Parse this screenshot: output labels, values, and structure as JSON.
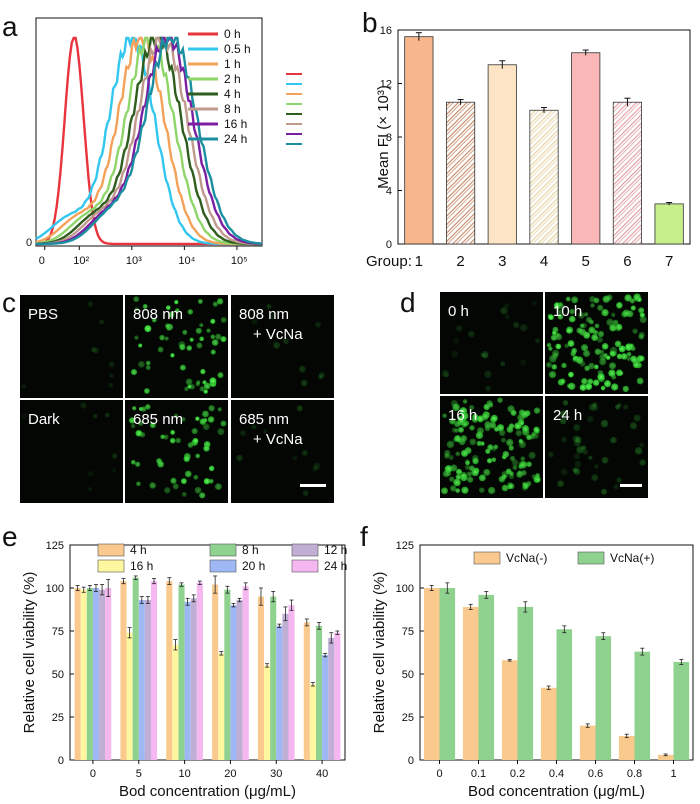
{
  "panels": {
    "a": "a",
    "b": "b",
    "c": "c",
    "d": "d",
    "e": "e",
    "f": "f"
  },
  "chart_data": [
    {
      "panel": "a",
      "type": "line",
      "x_scale": "log",
      "x_tick_labels": [
        "0",
        "10²",
        "10³",
        "10⁴",
        "10⁵"
      ],
      "y_tick_labels": [
        "0"
      ],
      "series": [
        {
          "name": "0 h",
          "color": "#e8343c",
          "peak": 80
        },
        {
          "name": "0.5 h",
          "color": "#33c7f0",
          "peak": 1000
        },
        {
          "name": "1 h",
          "color": "#f4a25a",
          "peak": 1500
        },
        {
          "name": "2 h",
          "color": "#8fd66a",
          "peak": 2200
        },
        {
          "name": "4 h",
          "color": "#2f5d1e",
          "peak": 3000
        },
        {
          "name": "8 h",
          "color": "#c09a8c",
          "peak": 3800
        },
        {
          "name": "16 h",
          "color": "#7b1fa2",
          "peak": 4800
        },
        {
          "name": "24 h",
          "color": "#1b8fa0",
          "peak": 5600
        }
      ],
      "legend_extra_colors": [
        "#e8343c",
        "#33c7f0",
        "#f4a25a",
        "#8fd66a",
        "#2f5d1e",
        "#c09a8c",
        "#7b1fa2",
        "#1b8fa0"
      ]
    },
    {
      "panel": "b",
      "type": "bar",
      "categories_label": "Group:",
      "categories": [
        "1",
        "2",
        "3",
        "4",
        "5",
        "6",
        "7"
      ],
      "values": [
        15.5,
        10.6,
        13.4,
        10.0,
        14.3,
        10.6,
        3.0
      ],
      "errors": [
        0.3,
        0.2,
        0.3,
        0.2,
        0.2,
        0.3,
        0.1
      ],
      "fills": [
        "#f7b68c",
        "#c98d6e",
        "#fde4c4",
        "#e8d2a2",
        "#f9b7b7",
        "#e2a2a6",
        "#c7ef8a"
      ],
      "hatched": [
        false,
        true,
        false,
        true,
        false,
        true,
        false
      ],
      "ylabel": "Mean FI (× 10³)",
      "ylim": [
        0,
        16
      ],
      "y_ticks": [
        0,
        4,
        8,
        12,
        16
      ]
    },
    {
      "panel": "e",
      "type": "bar",
      "categories": [
        "0",
        "5",
        "10",
        "20",
        "30",
        "40"
      ],
      "series": [
        {
          "name": "4 h",
          "color": "#f9c98e",
          "values": [
            100,
            104,
            104,
            102,
            95,
            80
          ],
          "errors": [
            1.5,
            1.5,
            2,
            5,
            5,
            2
          ]
        },
        {
          "name": "16 h",
          "color": "#fff7a0",
          "values": [
            99,
            74,
            67,
            62,
            55,
            44
          ],
          "errors": [
            1.5,
            3,
            3,
            1,
            1,
            1
          ]
        },
        {
          "name": "8 h",
          "color": "#8fd18f",
          "values": [
            100,
            106,
            102,
            99,
            95,
            78
          ],
          "errors": [
            1.5,
            1,
            1,
            2,
            3,
            2
          ]
        },
        {
          "name": "20 h",
          "color": "#9eb8f5",
          "values": [
            100,
            93,
            92,
            90,
            78,
            61
          ],
          "errors": [
            2,
            2,
            2,
            1,
            1,
            1
          ]
        },
        {
          "name": "12 h",
          "color": "#c0aed4",
          "values": [
            99,
            93,
            94,
            93,
            85,
            71
          ],
          "errors": [
            3,
            2,
            2,
            1,
            4,
            3
          ]
        },
        {
          "name": "24 h",
          "color": "#f5b7f0",
          "values": [
            100,
            104,
            103,
            101,
            90,
            74
          ],
          "errors": [
            5,
            1.5,
            1,
            2,
            3,
            1
          ]
        }
      ],
      "xlabel": "Bod concentration (μg/mL)",
      "ylabel": "Relative cell viability (%)",
      "ylim": [
        0,
        125
      ],
      "y_ticks": [
        0,
        25,
        50,
        75,
        100,
        125
      ]
    },
    {
      "panel": "f",
      "type": "bar",
      "categories": [
        "0",
        "0.1",
        "0.2",
        "0.4",
        "0.6",
        "0.8",
        "1"
      ],
      "series": [
        {
          "name": "VcNa(-)",
          "color": "#f9c98e",
          "values": [
            100,
            89,
            58,
            42,
            20,
            14,
            3
          ],
          "errors": [
            1.5,
            1.5,
            0.5,
            1,
            1,
            1,
            0.5
          ]
        },
        {
          "name": "VcNa(+)",
          "color": "#8fd18f",
          "values": [
            100,
            96,
            89,
            76,
            72,
            63,
            57
          ],
          "errors": [
            3,
            2,
            3,
            2,
            2,
            2,
            1.5
          ]
        }
      ],
      "xlabel": "Bod concentration (μg/mL)",
      "ylabel": "Relative cell viability (%)",
      "ylim": [
        0,
        125
      ],
      "y_ticks": [
        0,
        25,
        50,
        75,
        100,
        125
      ]
    }
  ],
  "micrographs_c": [
    {
      "label": "PBS",
      "label2": "",
      "density": 8,
      "brightness": 0.18
    },
    {
      "label": "808 nm",
      "label2": "",
      "density": 60,
      "brightness": 1
    },
    {
      "label": "808 nm",
      "label2": "+ VcNa",
      "density": 10,
      "brightness": 0.22
    },
    {
      "label": "Dark",
      "label2": "",
      "density": 8,
      "brightness": 0.18
    },
    {
      "label": "685 nm",
      "label2": "",
      "density": 55,
      "brightness": 1
    },
    {
      "label": "685 nm",
      "label2": "+ VcNa",
      "density": 10,
      "brightness": 0.22
    }
  ],
  "micrographs_d": [
    {
      "label": "0 h",
      "density": 20,
      "brightness": 0.2
    },
    {
      "label": "10 h",
      "density": 140,
      "brightness": 1
    },
    {
      "label": "16 h",
      "density": 150,
      "brightness": 0.9
    },
    {
      "label": "24 h",
      "density": 40,
      "brightness": 0.3
    }
  ],
  "colors": {
    "micro_bg": "#030603",
    "cell_green": "#37e23a"
  }
}
